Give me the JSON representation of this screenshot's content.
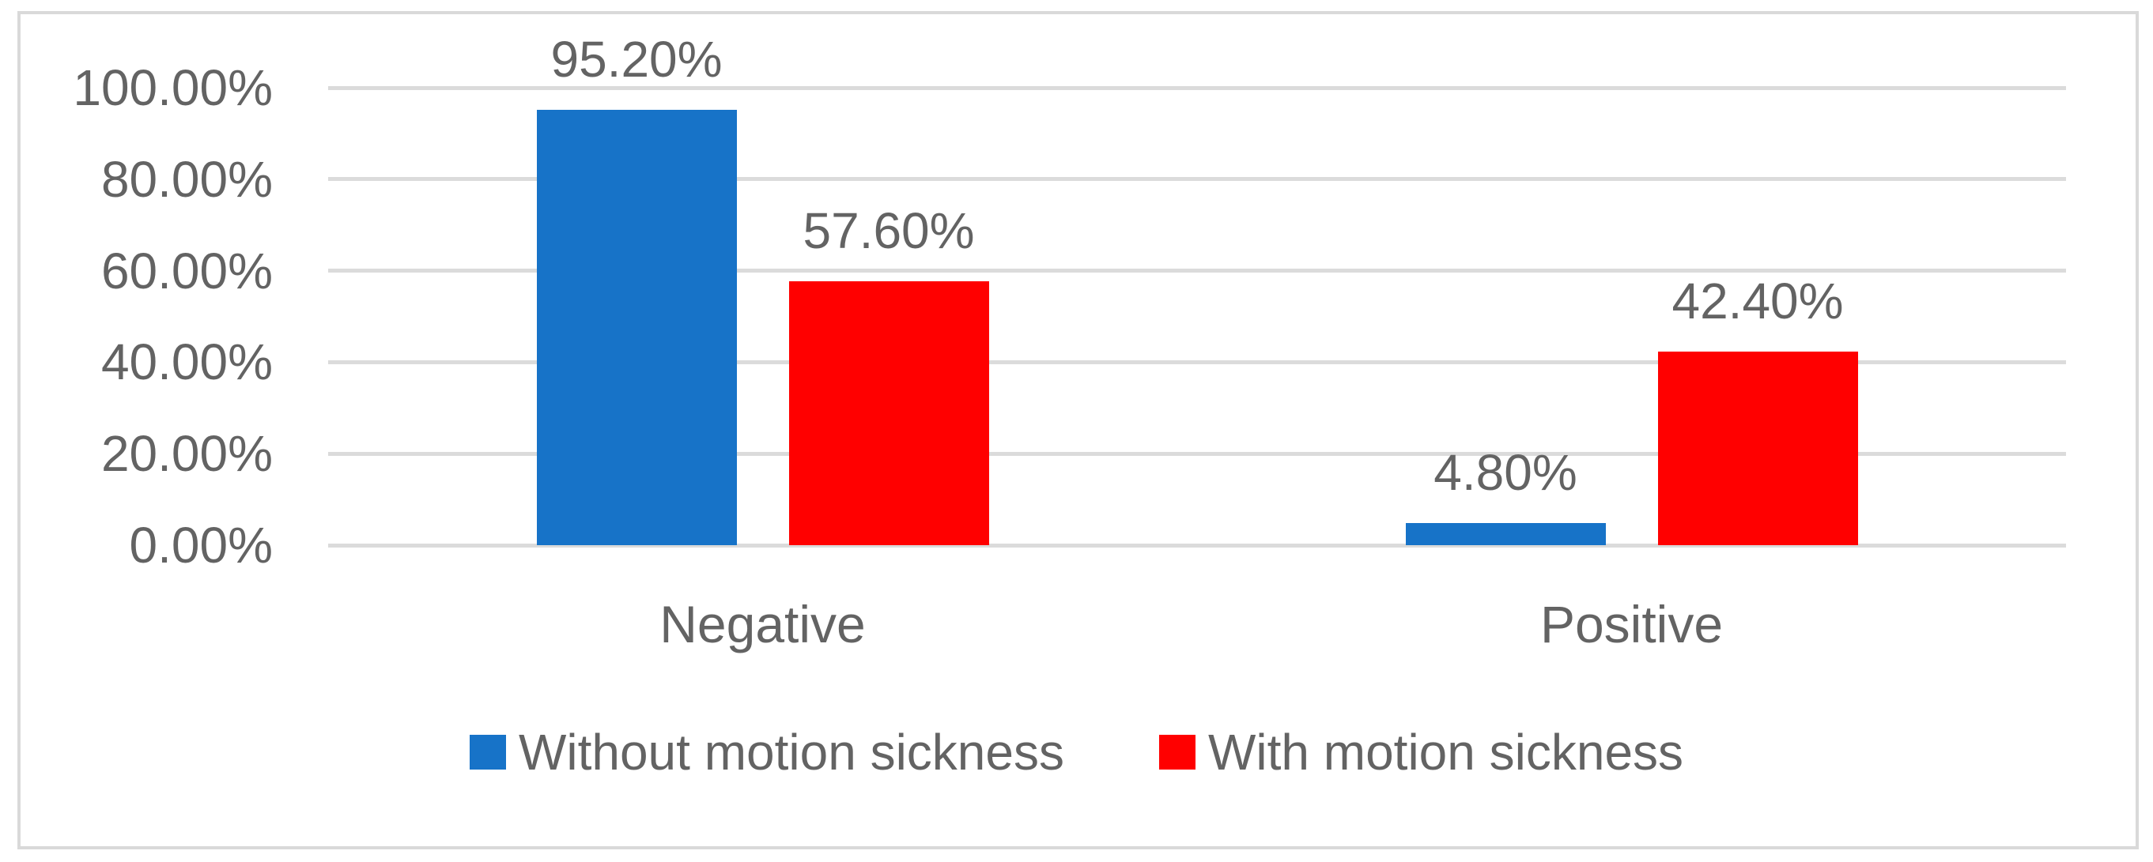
{
  "chart_data": {
    "type": "bar",
    "title": "",
    "xlabel": "",
    "ylabel": "",
    "categories": [
      "Negative",
      "Positive"
    ],
    "series": [
      {
        "name": "Without motion sickness",
        "color": "#1773C8",
        "values": [
          95.2,
          4.8
        ],
        "data_labels": [
          "95.20%",
          "4.80%"
        ]
      },
      {
        "name": "With motion sickness",
        "color": "#FF0000",
        "values": [
          57.6,
          42.4
        ],
        "data_labels": [
          "57.60%",
          "42.40%"
        ]
      }
    ],
    "y_axis": {
      "min": 0,
      "max": 100,
      "ticks": [
        100,
        80,
        60,
        40,
        20,
        0
      ],
      "tick_labels": [
        "100.00%",
        "80.00%",
        "60.00%",
        "40.00%",
        "20.00%",
        "0.00%"
      ]
    },
    "grid": true,
    "legend_position": "bottom"
  },
  "colors": {
    "grid": "#DBDBDB",
    "frame_border": "#D9D9D9",
    "text": "#636363",
    "background": "#FFFFFF"
  }
}
